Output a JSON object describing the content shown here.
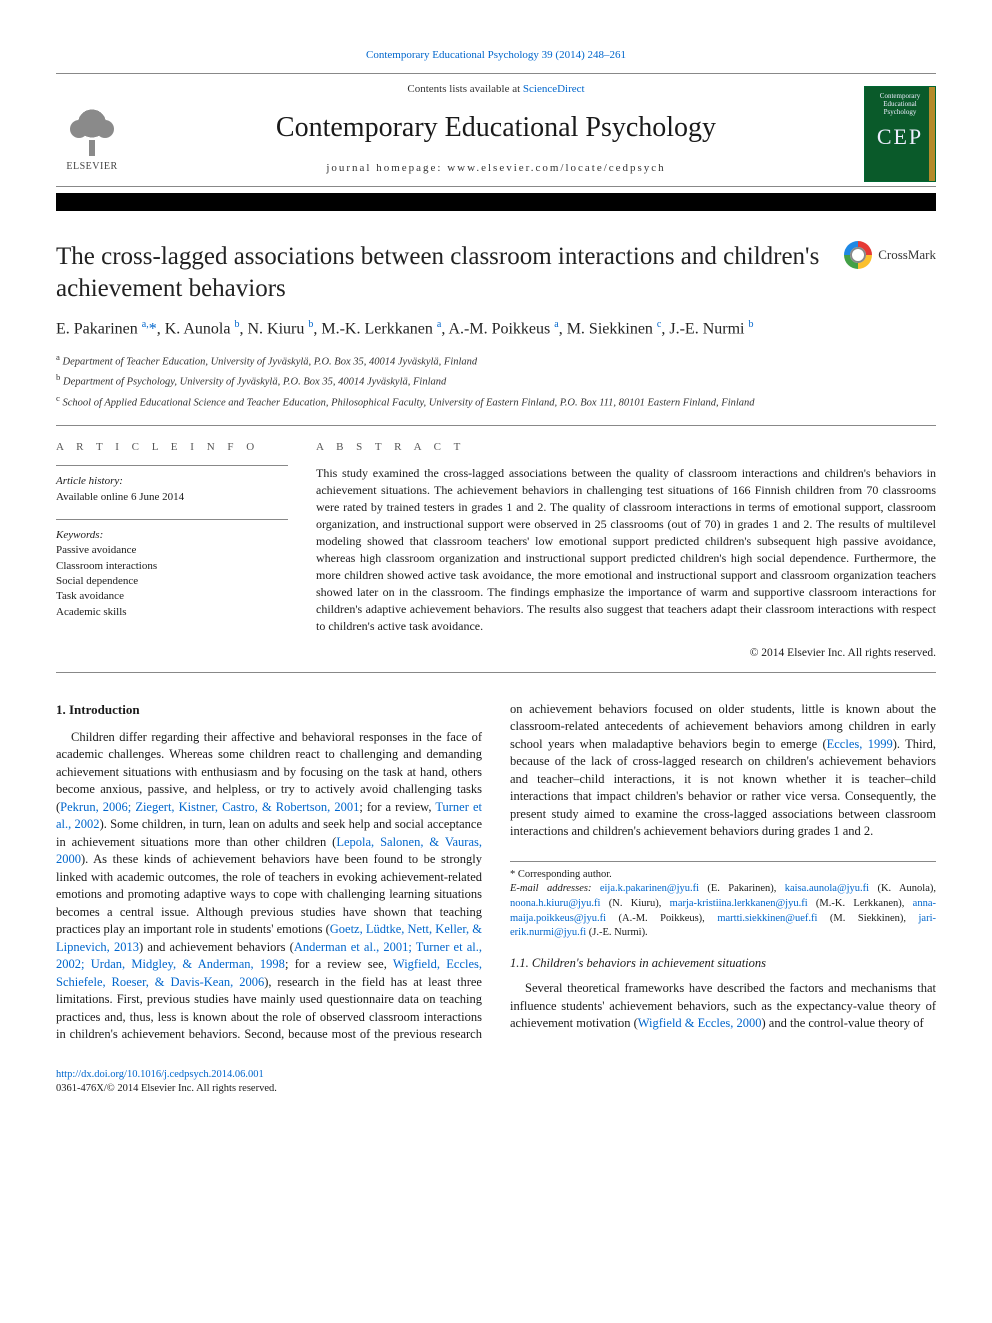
{
  "topline": {
    "text": "Contemporary Educational Psychology 39 (2014) 248–261"
  },
  "masthead": {
    "contents_prefix": "Contents lists available at ",
    "contents_link": "ScienceDirect",
    "journal": "Contemporary Educational Psychology",
    "homepage_prefix": "journal homepage: ",
    "homepage": "www.elsevier.com/locate/cedpsych",
    "publisher": "ELSEVIER",
    "cover_lines": [
      "Contemporary",
      "Educational",
      "Psychology"
    ],
    "cover_big": "CEP"
  },
  "crossmark": {
    "label": "CrossMark"
  },
  "title": "The cross-lagged associations between classroom interactions and children's achievement behaviors",
  "authors_html": "E. Pakarinen <sup class=\"aff\">a,</sup><span class=\"star\">*</span>, K. Aunola <sup class=\"aff\">b</sup>, N. Kiuru <sup class=\"aff\">b</sup>, M.-K. Lerkkanen <sup class=\"aff\">a</sup>, A.-M. Poikkeus <sup class=\"aff\">a</sup>, M. Siekkinen <sup class=\"aff\">c</sup>, J.-E. Nurmi <sup class=\"aff\">b</sup>",
  "affiliations": [
    {
      "sup": "a",
      "text": "Department of Teacher Education, University of Jyväskylä, P.O. Box 35, 40014 Jyväskylä, Finland"
    },
    {
      "sup": "b",
      "text": "Department of Psychology, University of Jyväskylä, P.O. Box 35, 40014 Jyväskylä, Finland"
    },
    {
      "sup": "c",
      "text": "School of Applied Educational Science and Teacher Education, Philosophical Faculty, University of Eastern Finland, P.O. Box 111, 80101 Eastern Finland, Finland"
    }
  ],
  "article_info": {
    "head": "A R T I C L E   I N F O",
    "history_label": "Article history:",
    "history_value": "Available online 6 June 2014",
    "keywords_label": "Keywords:",
    "keywords": [
      "Passive avoidance",
      "Classroom interactions",
      "Social dependence",
      "Task avoidance",
      "Academic skills"
    ]
  },
  "abstract": {
    "head": "A B S T R A C T",
    "text": "This study examined the cross-lagged associations between the quality of classroom interactions and children's behaviors in achievement situations. The achievement behaviors in challenging test situations of 166 Finnish children from 70 classrooms were rated by trained testers in grades 1 and 2. The quality of classroom interactions in terms of emotional support, classroom organization, and instructional support were observed in 25 classrooms (out of 70) in grades 1 and 2. The results of multilevel modeling showed that classroom teachers' low emotional support predicted children's subsequent high passive avoidance, whereas high classroom organization and instructional support predicted children's high social dependence. Furthermore, the more children showed active task avoidance, the more emotional and instructional support and classroom organization teachers showed later on in the classroom. The findings emphasize the importance of warm and supportive classroom interactions for children's adaptive achievement behaviors. The results also suggest that teachers adapt their classroom interactions with respect to children's active task avoidance.",
    "copyright": "© 2014 Elsevier Inc. All rights reserved."
  },
  "sections": {
    "s1_head": "1. Introduction",
    "s11_head": "1.1. Children's behaviors in achievement situations",
    "p1a": "Children differ regarding their affective and behavioral responses in the face of academic challenges. Whereas some children react to challenging and demanding achievement situations with enthusiasm and by focusing on the task at hand, others become anxious, passive, and helpless, or try to actively avoid challenging tasks (",
    "p1_link1": "Pekrun, 2006; Ziegert, Kistner, Castro, & Robertson, 2001",
    "p1b": "; for a review, ",
    "p1_link2": "Turner et al., 2002",
    "p1c": "). Some children, in turn, lean on adults and seek help and social acceptance in achievement situations more than other children (",
    "p1_link3": "Lepola, Salonen, & Vauras, 2000",
    "p1d": "). As these kinds of achievement behaviors have been found to be strongly linked with academic outcomes, the role of teachers in evoking achievement-related emotions and promoting adaptive ways to cope with challenging learning situations becomes a central issue. Although previous studies have shown that teaching practices play an important role in students' emotions (",
    "p1_link4": "Goetz, Lüdtke, Nett, Keller, & Lipnevich, 2013",
    "p1e": ") and achievement behaviors ",
    "p2a": "(",
    "p2_link1": "Anderman et al., 2001; Turner et al., 2002; Urdan, Midgley, & Anderman, 1998",
    "p2b": "; for a review see, ",
    "p2_link2": "Wigfield, Eccles, Schiefele, Roeser, & Davis-Kean, 2006",
    "p2c": "), research in the field has at least three limitations. First, previous studies have mainly used questionnaire data on teaching practices and, thus, less is known about the role of observed classroom interactions in children's achievement behaviors. Second, because most of the previous research on achievement behaviors focused on older students, little is known about the classroom-related antecedents of achievement behaviors among children in early school years when maladaptive behaviors begin to emerge (",
    "p2_link3": "Eccles, 1999",
    "p2d": "). Third, because of the lack of cross-lagged research on children's achievement behaviors and teacher–child interactions, it is not known whether it is teacher–child interactions that impact children's behavior or rather vice versa. Consequently, the present study aimed to examine the cross-lagged associations between classroom interactions and children's achievement behaviors during grades 1 and 2.",
    "p3a": "Several theoretical frameworks have described the factors and mechanisms that influence students' achievement behaviors, such as the expectancy-value theory of achievement motivation (",
    "p3_link1": "Wigfield & Eccles, 2000",
    "p3b": ") and the control-value theory of"
  },
  "footnotes": {
    "corr_label": "* Corresponding author.",
    "email_label": "E-mail addresses:",
    "emails": [
      {
        "addr": "eija.k.pakarinen@jyu.fi",
        "who": " (E. Pakarinen), "
      },
      {
        "addr": "kaisa.aunola@jyu.fi",
        "who": " (K. Aunola), "
      },
      {
        "addr": "noona.h.kiuru@jyu.fi",
        "who": " (N. Kiuru), "
      },
      {
        "addr": "marja-kristiina.lerkkanen@jyu.fi",
        "who": " (M.-K. Lerkkanen), "
      },
      {
        "addr": "anna-maija.poikkeus@jyu.fi",
        "who": " (A.-M. Poikkeus), "
      },
      {
        "addr": "martti.siekkinen@uef.fi",
        "who": " (M. Siekkinen), "
      },
      {
        "addr": "jari-erik.nurmi@jyu.fi",
        "who": " (J.-E. Nurmi)."
      }
    ]
  },
  "footer": {
    "doi": "http://dx.doi.org/10.1016/j.cedpsych.2014.06.001",
    "issn_line": "0361-476X/© 2014 Elsevier Inc. All rights reserved."
  },
  "colors": {
    "link": "#0066cc",
    "text": "#1a1a1a",
    "rule": "#888888",
    "cover_bg": "#0a5a2a",
    "cover_band": "#b58a2a"
  }
}
